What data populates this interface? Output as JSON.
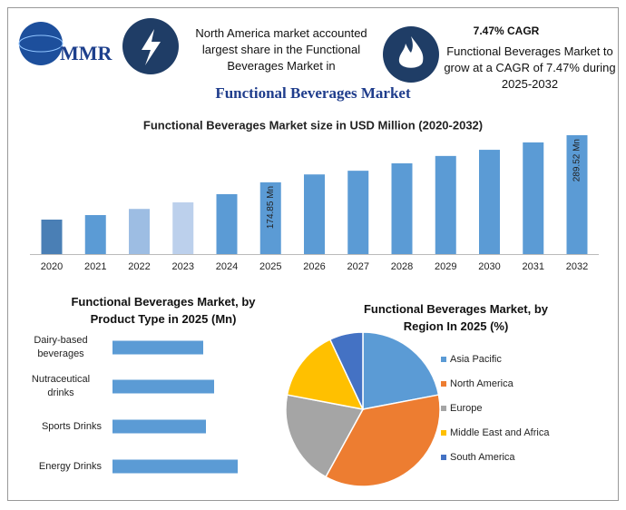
{
  "header": {
    "logo": "MMR",
    "left_text": "North America market accounted largest share in the Functional Beverages Market in",
    "cagr": "7.47% CAGR",
    "right_text": "Functional Beverages Market to grow at a CAGR of 7.47% during 2025-2032",
    "title": "Functional Beverages Market"
  },
  "chart_data": [
    {
      "type": "bar",
      "title": "Functional Beverages Market size in USD Million (2020-2032)",
      "categories": [
        "2020",
        "2021",
        "2022",
        "2023",
        "2024",
        "2025",
        "2026",
        "2027",
        "2028",
        "2029",
        "2030",
        "2031",
        "2032"
      ],
      "values": [
        84,
        95,
        110,
        126,
        146,
        174.85,
        194,
        203,
        221,
        239,
        254,
        272,
        289.52
      ],
      "value_labels": [
        null,
        null,
        null,
        null,
        null,
        "174.85 Mn",
        null,
        null,
        null,
        null,
        null,
        null,
        "289.52 Mn"
      ],
      "colors": [
        "#4a7fb5",
        "#5b9bd5",
        "#9dbde3",
        "#bcd0ec",
        "#5b9bd5",
        "#5b9bd5",
        "#5b9bd5",
        "#5b9bd5",
        "#5b9bd5",
        "#5b9bd5",
        "#5b9bd5",
        "#5b9bd5",
        "#5b9bd5"
      ]
    },
    {
      "type": "hbar",
      "title": "Functional Beverages Market, by Product Type in 2025 (Mn)",
      "categories": [
        "Dairy-based beverages",
        "Nutraceutical drinks",
        "Sports Drinks",
        "Energy Drinks"
      ],
      "values": [
        100,
        112,
        103,
        138
      ],
      "color": "#5b9bd5"
    },
    {
      "type": "pie",
      "title": "Functional Beverages Market, by Region In 2025 (%)",
      "categories": [
        "Asia Pacific",
        "North America",
        "Europe",
        "Middle East and Africa",
        "South America"
      ],
      "values": [
        22,
        36,
        20,
        15,
        7
      ],
      "colors": [
        "#5b9bd5",
        "#ed7d31",
        "#a5a5a5",
        "#ffc000",
        "#4472c4"
      ]
    }
  ]
}
